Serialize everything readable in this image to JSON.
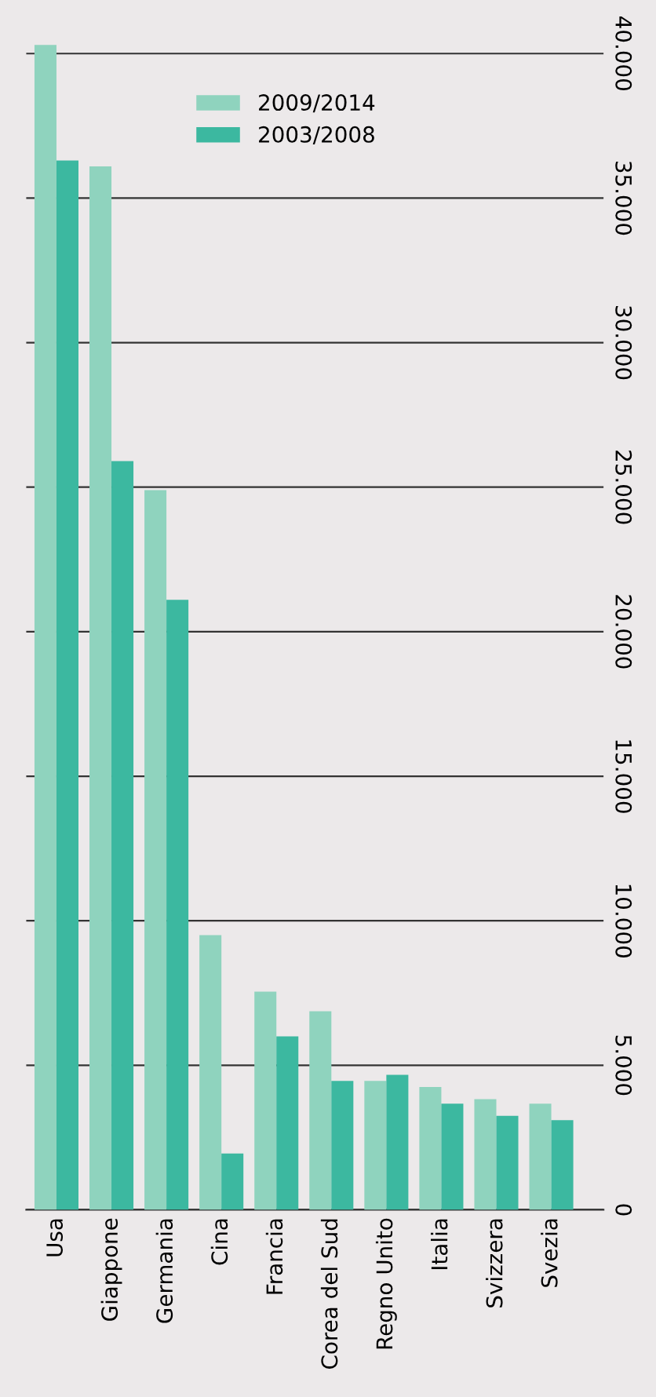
{
  "chart_data": {
    "type": "bar",
    "categories": [
      "Usa",
      "Giappone",
      "Germania",
      "Cina",
      "Francia",
      "Corea del Sud",
      "Regno Unito",
      "Italia",
      "Svizzera",
      "Svezia"
    ],
    "series": [
      {
        "name": "2009/2014",
        "color": "#8fd3be",
        "values": [
          40300,
          36100,
          24900,
          9500,
          7550,
          6870,
          4460,
          4250,
          3830,
          3670
        ]
      },
      {
        "name": "2003/2008",
        "color": "#3cb8a0",
        "values": [
          36300,
          25900,
          21100,
          1950,
          6000,
          4460,
          4670,
          3670,
          3250,
          3100
        ]
      }
    ],
    "ylim": [
      0,
      40500
    ],
    "yticks": [
      {
        "value": 0,
        "label": "0"
      },
      {
        "value": 5000,
        "label": "5.000"
      },
      {
        "value": 10000,
        "label": "10.000"
      },
      {
        "value": 15000,
        "label": "15.000"
      },
      {
        "value": 20000,
        "label": "20.000"
      },
      {
        "value": 25000,
        "label": "25.000"
      },
      {
        "value": 30000,
        "label": "30.000"
      },
      {
        "value": 35000,
        "label": "35.000"
      },
      {
        "value": 40000,
        "label": "40.000"
      }
    ],
    "grid": "y",
    "legend": "top"
  }
}
